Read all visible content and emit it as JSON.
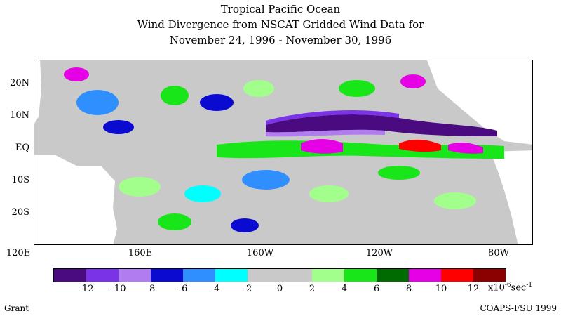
{
  "title": {
    "line1": "Tropical Pacific Ocean",
    "line2": "Wind Divergence from NSCAT Gridded Wind Data for",
    "line3": "November 24, 1996 - November 30, 1996"
  },
  "axes": {
    "lat_labels": [
      "20N",
      "10N",
      "EQ",
      "10S",
      "20S"
    ],
    "lon_labels": [
      "120E",
      "160E",
      "160W",
      "120W",
      "80W"
    ]
  },
  "colorbar": {
    "colors": [
      "#4a0a80",
      "#7a33e6",
      "#b07cf0",
      "#0a0ad0",
      "#2f8fff",
      "#00ffff",
      "#c9c9c9",
      "#c9c9c9",
      "#a3ff8c",
      "#19e619",
      "#006b00",
      "#e600e6",
      "#ff0000",
      "#8b0000"
    ],
    "labels": [
      "-12",
      "-10",
      "-8",
      "-6",
      "-4",
      "-2",
      "0",
      "2",
      "4",
      "6",
      "8",
      "10",
      "12"
    ],
    "units_prefix": "x10",
    "units_exp": "-6",
    "units_suffix": "sec",
    "units_exp2": "-1"
  },
  "footer": {
    "left": "Grant",
    "right": "COAPS-FSU 1999"
  }
}
